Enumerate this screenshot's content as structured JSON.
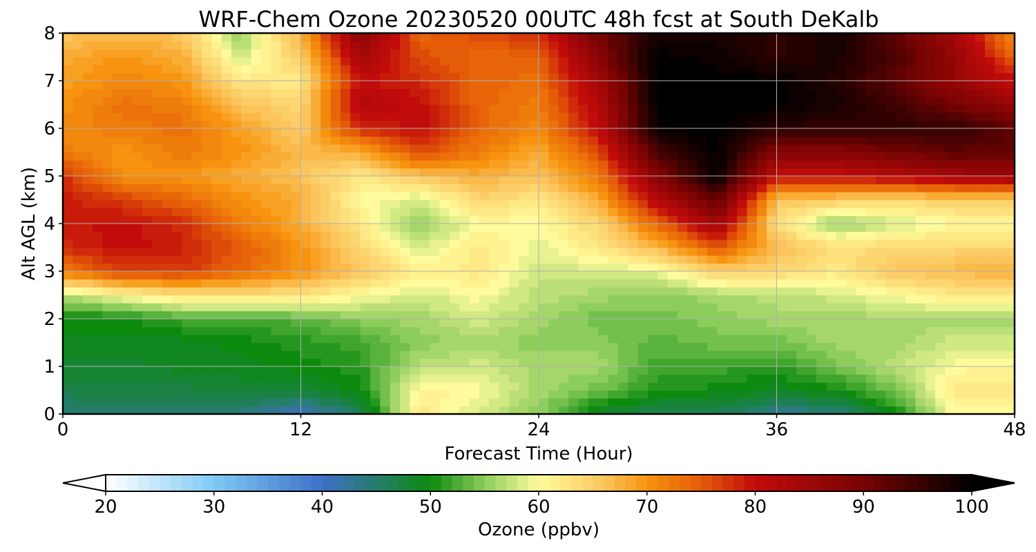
{
  "chart_data": {
    "type": "heatmap",
    "title": "WRF-Chem Ozone  20230520 00UTC 48h fcst at South DeKalb",
    "xlabel": "Forecast Time (Hour)",
    "ylabel": "Alt AGL (km)",
    "xlim": [
      0,
      48
    ],
    "ylim": [
      0,
      8
    ],
    "xticks": [
      0,
      12,
      24,
      36,
      48
    ],
    "yticks": [
      0,
      1,
      2,
      3,
      4,
      5,
      6,
      7,
      8
    ],
    "grid": true,
    "x": [
      0,
      3,
      6,
      9,
      12,
      15,
      18,
      21,
      24,
      27,
      30,
      33,
      36,
      39,
      42,
      45,
      48
    ],
    "y": [
      0,
      0.5,
      1,
      1.5,
      2,
      2.5,
      3,
      3.5,
      4,
      4.5,
      5,
      5.5,
      6,
      6.5,
      7,
      7.5,
      8
    ],
    "z": [
      [
        44,
        44,
        45,
        44,
        40,
        46,
        62,
        58,
        55,
        48,
        46,
        46,
        43,
        44,
        50,
        60,
        60
      ],
      [
        47,
        47,
        47,
        48,
        48,
        50,
        61,
        60,
        56,
        54,
        51,
        50,
        49,
        50,
        54,
        62,
        62
      ],
      [
        48,
        48,
        49,
        49,
        50,
        51,
        57,
        58,
        56,
        56,
        52,
        52,
        51,
        54,
        57,
        60,
        61
      ],
      [
        49,
        49,
        49,
        50,
        51,
        52,
        55,
        56,
        55,
        55,
        53,
        54,
        54,
        56,
        56,
        58,
        58
      ],
      [
        50,
        50,
        52,
        52,
        53,
        55,
        56,
        58,
        56,
        54,
        54,
        55,
        56,
        56,
        56,
        56,
        56
      ],
      [
        57,
        60,
        63,
        63,
        63,
        60,
        58,
        60,
        57,
        56,
        55,
        56,
        57,
        58,
        60,
        62,
        62
      ],
      [
        72,
        77,
        77,
        74,
        70,
        66,
        61,
        62,
        58,
        58,
        59,
        65,
        64,
        62,
        66,
        67,
        68
      ],
      [
        78,
        80,
        79,
        75,
        70,
        64,
        58,
        62,
        59,
        62,
        67,
        75,
        67,
        63,
        64,
        64,
        64
      ],
      [
        79,
        80,
        78,
        72,
        68,
        62,
        55,
        60,
        60,
        64,
        74,
        85,
        63,
        55,
        58,
        60,
        60
      ],
      [
        79,
        77,
        74,
        70,
        68,
        60,
        58,
        64,
        62,
        68,
        82,
        92,
        66,
        65,
        64,
        65,
        65
      ],
      [
        78,
        70,
        70,
        68,
        66,
        62,
        66,
        68,
        66,
        72,
        88,
        100,
        80,
        80,
        82,
        84,
        85
      ],
      [
        72,
        70,
        72,
        70,
        67,
        68,
        76,
        72,
        68,
        76,
        94,
        100,
        88,
        88,
        90,
        92,
        92
      ],
      [
        71,
        72,
        73,
        69,
        65,
        78,
        80,
        74,
        71,
        80,
        100,
        100,
        96,
        96,
        96,
        96,
        92
      ],
      [
        70,
        73,
        72,
        66,
        64,
        82,
        80,
        74,
        72,
        82,
        100,
        100,
        100,
        98,
        95,
        90,
        86
      ],
      [
        69,
        71,
        70,
        62,
        62,
        80,
        78,
        74,
        73,
        84,
        100,
        100,
        100,
        97,
        92,
        86,
        80
      ],
      [
        68,
        70,
        68,
        58,
        65,
        84,
        76,
        74,
        74,
        88,
        100,
        99,
        96,
        98,
        94,
        86,
        74
      ],
      [
        66,
        67,
        66,
        55,
        68,
        88,
        74,
        76,
        78,
        90,
        98,
        98,
        96,
        98,
        92,
        84,
        70
      ]
    ],
    "colorbar": {
      "label": "Ozone  (ppbv)",
      "min": 20,
      "max": 100,
      "ticks": [
        20,
        30,
        40,
        50,
        60,
        70,
        80,
        90,
        100
      ],
      "extend": "both",
      "colors": [
        {
          "v": 20,
          "c": "#ffffff"
        },
        {
          "v": 30,
          "c": "#7fcaf5"
        },
        {
          "v": 40,
          "c": "#3f6fc8"
        },
        {
          "v": 50,
          "c": "#0c8a0e"
        },
        {
          "v": 55,
          "c": "#8dcd5c"
        },
        {
          "v": 60,
          "c": "#fffb9c"
        },
        {
          "v": 66,
          "c": "#fbc55c"
        },
        {
          "v": 70,
          "c": "#f7930f"
        },
        {
          "v": 75,
          "c": "#e45b08"
        },
        {
          "v": 80,
          "c": "#c20b0b"
        },
        {
          "v": 90,
          "c": "#780303"
        },
        {
          "v": 100,
          "c": "#000000"
        }
      ]
    }
  }
}
